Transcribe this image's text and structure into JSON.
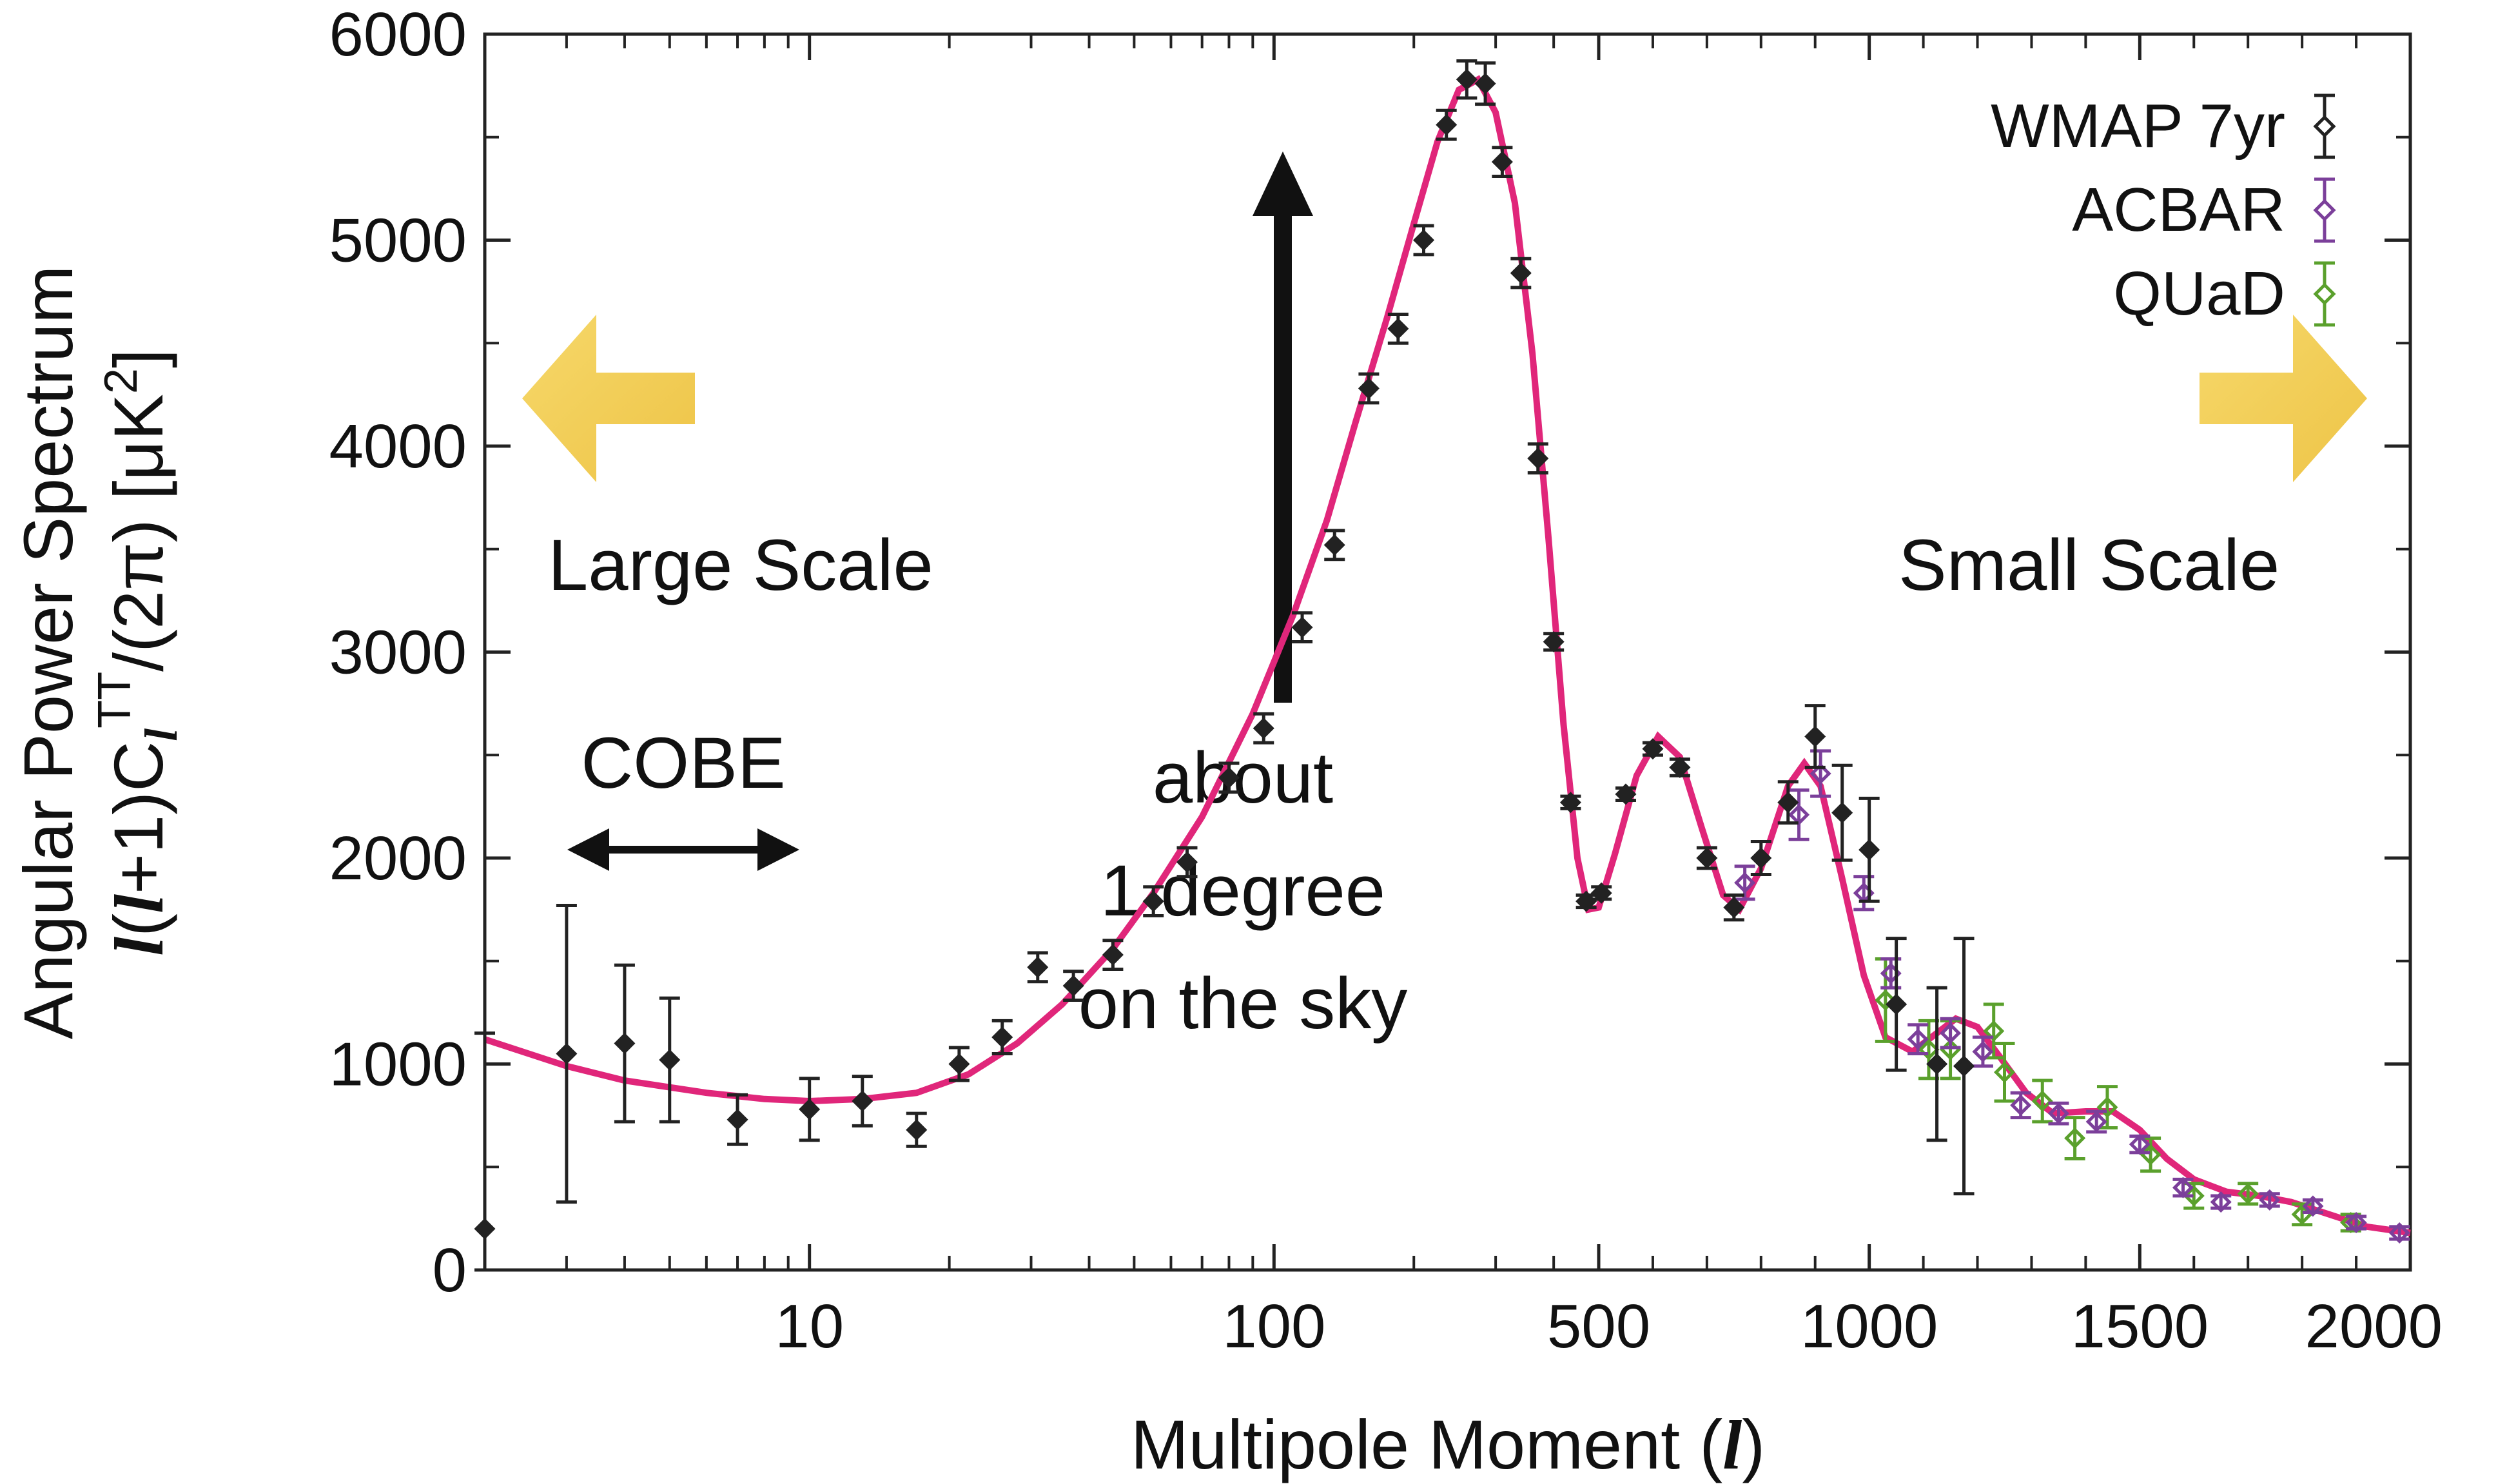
{
  "chart_data": {
    "type": "scatter",
    "xlabel": "Multipole Moment (l)",
    "ylabel_line1": "Angular Power Spectrum",
    "ylabel_line2": "l(l+1)C_l^TT/(2π) [μK²]",
    "x_scale": "log below l=500, linear above",
    "xlim": [
      2,
      2000
    ],
    "ylim": [
      0,
      6000
    ],
    "x_ticks": [
      10,
      100,
      500,
      1000,
      1500,
      2000
    ],
    "y_ticks": [
      0,
      1000,
      2000,
      3000,
      4000,
      5000,
      6000
    ],
    "grid": false,
    "legend_placement": "top-right",
    "colors": {
      "wmap": "#222222",
      "acbar": "#7b3f9a",
      "quad": "#5aa02c",
      "model": "#e0267a",
      "arrow": "#f2cc4c"
    },
    "series": [
      {
        "name": "WMAP 7yr",
        "points": [
          [
            2,
            200,
            950
          ],
          [
            3,
            1050,
            720
          ],
          [
            4,
            1100,
            380
          ],
          [
            5,
            1020,
            300
          ],
          [
            7,
            730,
            120
          ],
          [
            10,
            780,
            150
          ],
          [
            13,
            820,
            120
          ],
          [
            17,
            680,
            80
          ],
          [
            21,
            1000,
            80
          ],
          [
            26,
            1130,
            80
          ],
          [
            31,
            1470,
            70
          ],
          [
            37,
            1380,
            70
          ],
          [
            45,
            1530,
            70
          ],
          [
            55,
            1790,
            70
          ],
          [
            65,
            1980,
            70
          ],
          [
            80,
            2390,
            70
          ],
          [
            95,
            2630,
            70
          ],
          [
            115,
            3120,
            70
          ],
          [
            135,
            3520,
            70
          ],
          [
            160,
            4280,
            70
          ],
          [
            185,
            4570,
            70
          ],
          [
            210,
            5000,
            70
          ],
          [
            235,
            5560,
            70
          ],
          [
            260,
            5780,
            90
          ],
          [
            285,
            5760,
            100
          ],
          [
            310,
            5380,
            70
          ],
          [
            340,
            4840,
            70
          ],
          [
            370,
            3940,
            70
          ],
          [
            400,
            3050,
            40
          ],
          [
            435,
            2270,
            30
          ],
          [
            470,
            1790,
            30
          ],
          [
            505,
            1830,
            30
          ],
          [
            550,
            2310,
            30
          ],
          [
            600,
            2530,
            30
          ],
          [
            650,
            2440,
            40
          ],
          [
            700,
            2000,
            50
          ],
          [
            750,
            1760,
            60
          ],
          [
            800,
            2000,
            80
          ],
          [
            850,
            2270,
            100
          ],
          [
            900,
            2590,
            150
          ],
          [
            950,
            2220,
            230
          ],
          [
            1000,
            2040,
            250
          ],
          [
            1050,
            1290,
            320
          ],
          [
            1125,
            1000,
            370
          ],
          [
            1175,
            990,
            620
          ]
        ]
      },
      {
        "name": "ACBAR",
        "points": [
          [
            770,
            1880,
            80
          ],
          [
            870,
            2210,
            120
          ],
          [
            910,
            2410,
            110
          ],
          [
            990,
            1830,
            80
          ],
          [
            1040,
            1440,
            70
          ],
          [
            1090,
            1120,
            70
          ],
          [
            1150,
            1150,
            70
          ],
          [
            1210,
            1060,
            70
          ],
          [
            1280,
            800,
            60
          ],
          [
            1350,
            760,
            50
          ],
          [
            1420,
            720,
            50
          ],
          [
            1500,
            610,
            40
          ],
          [
            1580,
            400,
            40
          ],
          [
            1650,
            330,
            30
          ],
          [
            1740,
            340,
            30
          ],
          [
            1820,
            310,
            30
          ],
          [
            1900,
            230,
            30
          ],
          [
            1980,
            180,
            30
          ]
        ]
      },
      {
        "name": "QUaD",
        "points": [
          [
            1030,
            1310,
            200
          ],
          [
            1110,
            1070,
            140
          ],
          [
            1150,
            1070,
            140
          ],
          [
            1230,
            1160,
            130
          ],
          [
            1250,
            960,
            140
          ],
          [
            1320,
            820,
            100
          ],
          [
            1380,
            640,
            100
          ],
          [
            1440,
            790,
            100
          ],
          [
            1520,
            560,
            80
          ],
          [
            1600,
            360,
            60
          ],
          [
            1700,
            370,
            50
          ],
          [
            1800,
            270,
            50
          ],
          [
            1890,
            230,
            40
          ]
        ]
      },
      {
        "name": "model",
        "points": [
          [
            2,
            1120
          ],
          [
            3,
            990
          ],
          [
            4,
            920
          ],
          [
            6,
            860
          ],
          [
            8,
            830
          ],
          [
            10,
            820
          ],
          [
            13,
            830
          ],
          [
            17,
            860
          ],
          [
            22,
            950
          ],
          [
            28,
            1100
          ],
          [
            35,
            1290
          ],
          [
            45,
            1560
          ],
          [
            55,
            1830
          ],
          [
            70,
            2200
          ],
          [
            90,
            2700
          ],
          [
            110,
            3180
          ],
          [
            130,
            3640
          ],
          [
            150,
            4120
          ],
          [
            175,
            4620
          ],
          [
            200,
            5080
          ],
          [
            225,
            5480
          ],
          [
            250,
            5730
          ],
          [
            275,
            5780
          ],
          [
            300,
            5620
          ],
          [
            330,
            5180
          ],
          [
            360,
            4450
          ],
          [
            390,
            3550
          ],
          [
            420,
            2650
          ],
          [
            450,
            2000
          ],
          [
            475,
            1750
          ],
          [
            500,
            1760
          ],
          [
            530,
            2020
          ],
          [
            570,
            2400
          ],
          [
            610,
            2590
          ],
          [
            650,
            2490
          ],
          [
            690,
            2150
          ],
          [
            730,
            1820
          ],
          [
            760,
            1750
          ],
          [
            800,
            1950
          ],
          [
            850,
            2350
          ],
          [
            880,
            2460
          ],
          [
            910,
            2350
          ],
          [
            950,
            1900
          ],
          [
            990,
            1430
          ],
          [
            1030,
            1130
          ],
          [
            1080,
            1060
          ],
          [
            1130,
            1160
          ],
          [
            1160,
            1220
          ],
          [
            1200,
            1180
          ],
          [
            1240,
            1040
          ],
          [
            1290,
            860
          ],
          [
            1340,
            760
          ],
          [
            1400,
            770
          ],
          [
            1450,
            770
          ],
          [
            1500,
            680
          ],
          [
            1550,
            540
          ],
          [
            1600,
            440
          ],
          [
            1660,
            380
          ],
          [
            1720,
            360
          ],
          [
            1780,
            330
          ],
          [
            1850,
            270
          ],
          [
            1920,
            210
          ],
          [
            2000,
            180
          ]
        ]
      }
    ],
    "annotations": {
      "large_scale": "Large Scale",
      "small_scale": "Small Scale",
      "cobe": "COBE",
      "peak_line1": "about",
      "peak_line2": "1 degree",
      "peak_line3": "on the sky"
    }
  }
}
